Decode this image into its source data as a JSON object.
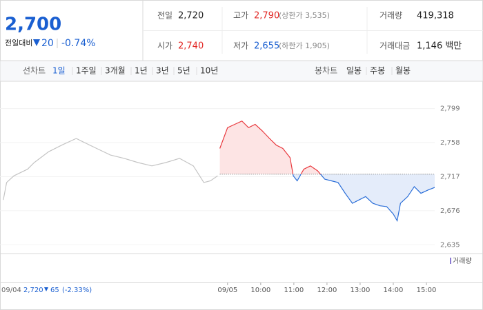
{
  "header": {
    "price": "2,700",
    "change_label": "전일대비",
    "change": "20",
    "change_pct": "-0.74%",
    "stats": [
      {
        "label": "전일",
        "value": "2,720"
      },
      {
        "label": "고가",
        "value": "2,790",
        "note": "(상한가 3,535)",
        "color": "#e22926"
      },
      {
        "label": "거래량",
        "value": "419,318"
      },
      {
        "label": "시가",
        "value": "2,740",
        "color": "#e22926"
      },
      {
        "label": "저가",
        "value": "2,655",
        "note": "(하한가 1,905)",
        "color": "#1a5fd1"
      },
      {
        "label": "거래대금",
        "value": "1,146 백만"
      }
    ]
  },
  "tabs": {
    "line_label": "선차트",
    "line_periods": [
      "1일",
      "1주일",
      "3개월",
      "1년",
      "3년",
      "5년",
      "10년"
    ],
    "candle_label": "봉차트",
    "candle_periods": [
      "일봉",
      "주봉",
      "월봉"
    ]
  },
  "chart_data": {
    "type": "line",
    "xlim": [
      0,
      787
    ],
    "ylim": [
      2627,
      2826
    ],
    "yticks": [
      {
        "value": 2799,
        "label": "2,799"
      },
      {
        "value": 2758,
        "label": "2,758"
      },
      {
        "value": 2717,
        "label": "2,717"
      },
      {
        "value": 2676,
        "label": "2,676"
      },
      {
        "value": 2635,
        "label": "2,635"
      }
    ],
    "xticks": [
      {
        "value": 412,
        "label": "09/05"
      },
      {
        "value": 472,
        "label": "10:00"
      },
      {
        "value": 532,
        "label": "11:00"
      },
      {
        "value": 592,
        "label": "12:00"
      },
      {
        "value": 652,
        "label": "13:00"
      },
      {
        "value": 712,
        "label": "14:00"
      },
      {
        "value": 772,
        "label": "15:00"
      }
    ],
    "reference": 2720,
    "series": [
      {
        "color": "#c4c4c4",
        "x": [
          6,
          12,
          25,
          50,
          62,
          88,
          112,
          138,
          150,
          175,
          200,
          225,
          250,
          275,
          300,
          325,
          350,
          369,
          381,
          394
        ],
        "values": [
          2689,
          2710,
          2718,
          2726,
          2734,
          2747,
          2755,
          2763,
          2759,
          2751,
          2743,
          2739,
          2734,
          2730,
          2734,
          2739,
          2730,
          2710,
          2712,
          2718
        ]
      },
      {
        "color_up": "#e8383d",
        "color_down": "#2a6ed8",
        "fill_up": "#fde4e4",
        "fill_down": "#e4ecfa",
        "x": [
          398,
          412,
          425,
          438,
          450,
          462,
          475,
          488,
          500,
          512,
          525,
          531,
          538,
          550,
          562,
          575,
          588,
          600,
          612,
          625,
          638,
          650,
          662,
          675,
          688,
          700,
          712,
          719,
          725,
          738,
          750,
          762,
          775,
          787
        ],
        "values": [
          2751,
          2776,
          2780,
          2784,
          2776,
          2780,
          2772,
          2763,
          2755,
          2751,
          2740,
          2718,
          2712,
          2726,
          2730,
          2724,
          2714,
          2712,
          2710,
          2697,
          2685,
          2689,
          2693,
          2685,
          2682,
          2681,
          2672,
          2664,
          2685,
          2693,
          2705,
          2697,
          2701,
          2704
        ]
      }
    ],
    "volume_label": "거래량",
    "prev_day": {
      "date": "09/04",
      "close": "2,720",
      "change": "65",
      "change_pct": "(-2.33%)"
    }
  }
}
